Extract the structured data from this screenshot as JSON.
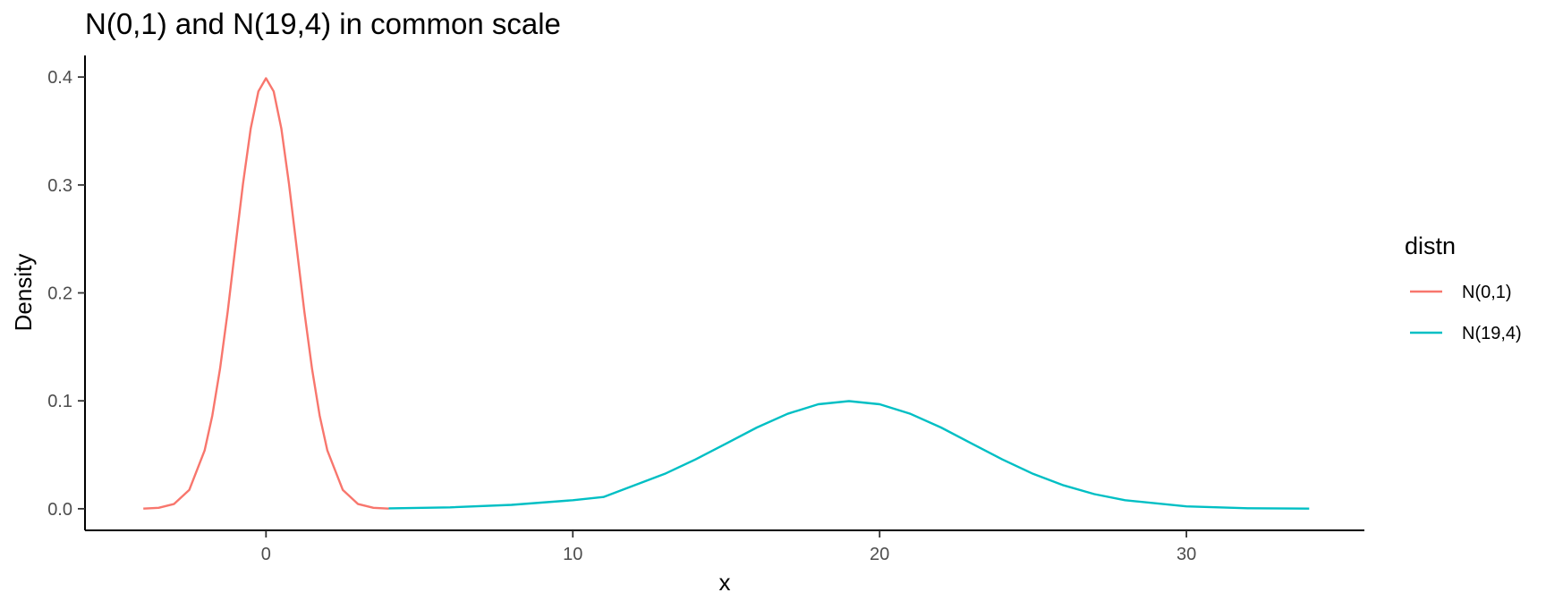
{
  "chart_data": {
    "type": "line",
    "title": "N(0,1) and N(19,4) in common scale",
    "xlabel": "x",
    "ylabel": "Density",
    "xlim": [
      -5.9,
      35.8
    ],
    "ylim": [
      -0.02,
      0.42
    ],
    "x_ticks": [
      0,
      10,
      20,
      30
    ],
    "x_tick_labels": [
      "0",
      "10",
      "20",
      "30"
    ],
    "y_ticks": [
      0.0,
      0.1,
      0.2,
      0.3,
      0.4
    ],
    "y_tick_labels": [
      "0.0",
      "0.1",
      "0.2",
      "0.3",
      "0.4"
    ],
    "grid": false,
    "legend": {
      "title": "distn",
      "placement": "right"
    },
    "series": [
      {
        "name": "N(0,1)",
        "color": "#F8766D",
        "x": [
          -4.0,
          -3.5,
          -3.0,
          -2.5,
          -2.0,
          -1.75,
          -1.5,
          -1.25,
          -1.0,
          -0.75,
          -0.5,
          -0.25,
          0.0,
          0.25,
          0.5,
          0.75,
          1.0,
          1.25,
          1.5,
          1.75,
          2.0,
          2.5,
          3.0,
          3.5,
          4.0
        ],
        "y": [
          0.0001,
          0.0009,
          0.0044,
          0.0175,
          0.054,
          0.0863,
          0.1295,
          0.1826,
          0.242,
          0.3011,
          0.3521,
          0.3867,
          0.3989,
          0.3867,
          0.3521,
          0.3011,
          0.242,
          0.1826,
          0.1295,
          0.0863,
          0.054,
          0.0175,
          0.0044,
          0.0009,
          0.0001
        ]
      },
      {
        "name": "N(19,4)",
        "color": "#00BFC4",
        "x": [
          4,
          6,
          8,
          10,
          11,
          12,
          13,
          14,
          15,
          16,
          17,
          18,
          19,
          20,
          21,
          22,
          23,
          24,
          25,
          26,
          27,
          28,
          30,
          32,
          34
        ],
        "y": [
          0.0004,
          0.0013,
          0.0036,
          0.0079,
          0.0109,
          0.0217,
          0.0324,
          0.0457,
          0.0605,
          0.0753,
          0.088,
          0.0968,
          0.0997,
          0.0968,
          0.088,
          0.0753,
          0.0605,
          0.0457,
          0.0324,
          0.0217,
          0.0136,
          0.0079,
          0.0022,
          0.0005,
          0.0001
        ]
      }
    ]
  }
}
